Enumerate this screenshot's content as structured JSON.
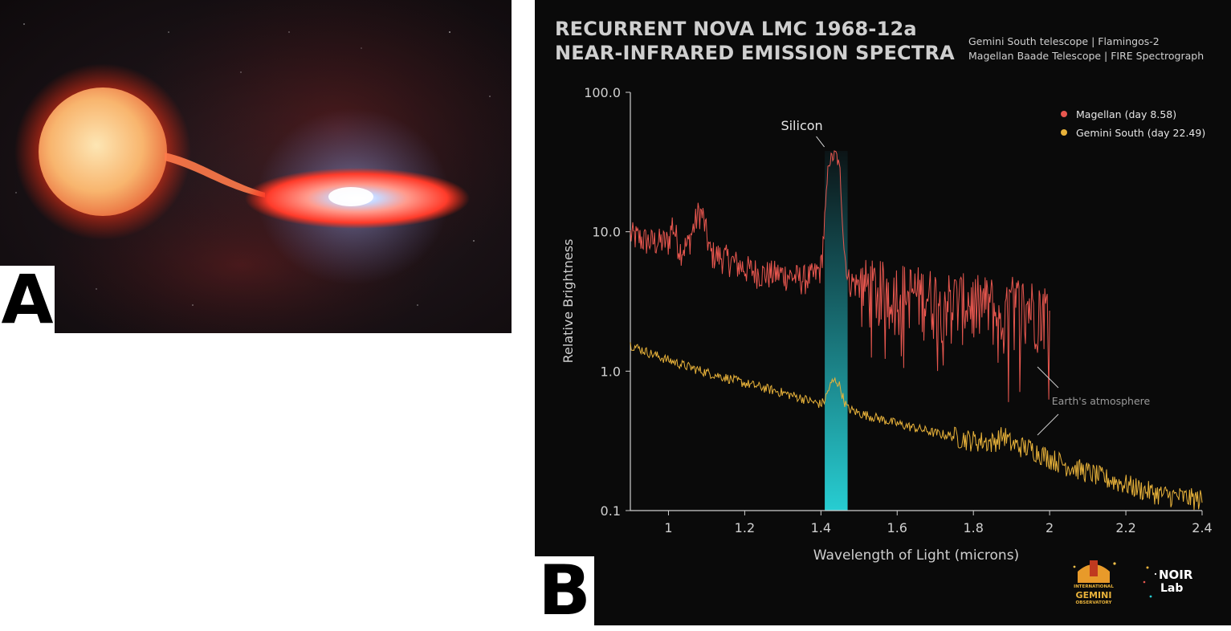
{
  "panel_a": {
    "letter": "A"
  },
  "panel_b": {
    "letter": "B"
  },
  "header": {
    "title_line1": "RECURRENT NOVA LMC 1968-12a",
    "title_line2": "NEAR-INFRARED EMISSION SPECTRA",
    "credit_line1": "Gemini South telescope | Flamingos-2",
    "credit_line2": "Magellan Baade Telescope | FIRE Spectrograph"
  },
  "logos": {
    "gemini": {
      "line1": "INTERNATIONAL",
      "line2": "GEMINI",
      "line3": "OBSERVATORY"
    },
    "noirlab": {
      "line1": "NOIR",
      "line2": "Lab"
    }
  },
  "chart_data": {
    "type": "line",
    "title": "RECURRENT NOVA LMC 1968-12a NEAR-INFRARED EMISSION SPECTRA",
    "xlabel": "Wavelength of Light (microns)",
    "ylabel": "Relative Brightness",
    "xlim": [
      0.9,
      2.4
    ],
    "ylim": [
      0.1,
      100
    ],
    "yscale": "log",
    "x_ticks": [
      "1",
      "1.2",
      "1.4",
      "1.6",
      "1.8",
      "2",
      "2.2",
      "2.4"
    ],
    "x_tick_values": [
      1.0,
      1.2,
      1.4,
      1.6,
      1.8,
      2.0,
      2.2,
      2.4
    ],
    "y_ticks": [
      "100.0",
      "10.0",
      "1.0",
      "0.1"
    ],
    "y_tick_values": [
      100,
      10,
      1,
      0.1
    ],
    "grid": false,
    "legend_position": "top-right",
    "highlight_band": {
      "x_range": [
        1.41,
        1.47
      ],
      "color": "#25c7cc"
    },
    "annotations": [
      {
        "text": "Silicon",
        "x": 1.43,
        "y": 35
      },
      {
        "text": "Earth's atmosphere",
        "x": 1.98,
        "y": 0.6
      }
    ],
    "series": [
      {
        "name": "Magellan (day 8.58)",
        "color": "#e8574f",
        "x": [
          0.9,
          0.95,
          1.0,
          1.01,
          1.03,
          1.05,
          1.08,
          1.09,
          1.11,
          1.15,
          1.2,
          1.25,
          1.3,
          1.35,
          1.38,
          1.4,
          1.41,
          1.42,
          1.43,
          1.44,
          1.45,
          1.46,
          1.47,
          1.5,
          1.55,
          1.6,
          1.65,
          1.7,
          1.75,
          1.8,
          1.85,
          1.87,
          1.9,
          1.95,
          2.0
        ],
        "y": [
          9.5,
          8.5,
          8.5,
          11.5,
          7.5,
          8.0,
          14.0,
          13.0,
          7.0,
          6.5,
          5.5,
          5.0,
          5.0,
          4.6,
          4.8,
          5.5,
          12.0,
          32.0,
          34.0,
          36.0,
          27.0,
          8.0,
          4.5,
          4.2,
          4.0,
          3.9,
          3.7,
          3.5,
          3.3,
          3.2,
          3.1,
          2.0,
          3.2,
          3.0,
          2.8
        ]
      },
      {
        "name": "Gemini South (day 22.49)",
        "color": "#e8b23a",
        "x": [
          0.9,
          0.95,
          1.0,
          1.05,
          1.1,
          1.15,
          1.2,
          1.25,
          1.3,
          1.35,
          1.38,
          1.4,
          1.41,
          1.42,
          1.43,
          1.44,
          1.45,
          1.46,
          1.47,
          1.5,
          1.55,
          1.6,
          1.65,
          1.7,
          1.75,
          1.8,
          1.85,
          1.88,
          1.9,
          1.95,
          2.0,
          2.05,
          2.1,
          2.15,
          2.2,
          2.25,
          2.3,
          2.35,
          2.4
        ],
        "y": [
          1.55,
          1.35,
          1.2,
          1.08,
          0.98,
          0.9,
          0.82,
          0.76,
          0.7,
          0.64,
          0.6,
          0.58,
          0.62,
          0.74,
          0.84,
          0.86,
          0.78,
          0.62,
          0.54,
          0.5,
          0.46,
          0.42,
          0.39,
          0.36,
          0.34,
          0.32,
          0.31,
          0.35,
          0.3,
          0.28,
          0.24,
          0.21,
          0.19,
          0.17,
          0.155,
          0.14,
          0.13,
          0.125,
          0.12
        ]
      }
    ]
  }
}
